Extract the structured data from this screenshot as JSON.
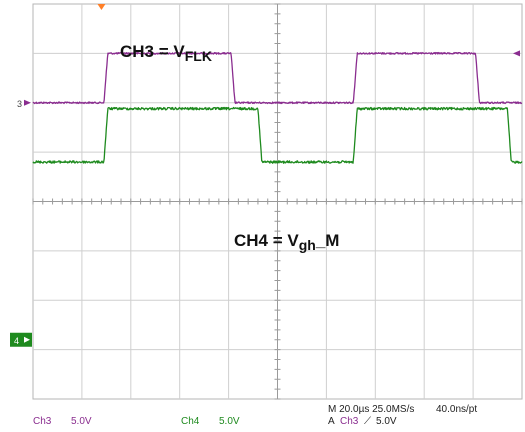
{
  "chart_data": {
    "type": "line",
    "grid": true,
    "divisions": {
      "x": 10,
      "y": 8
    },
    "x": {
      "unit": "div",
      "range": [
        0,
        10
      ]
    },
    "y": {
      "unit": "div",
      "range": [
        0,
        8
      ]
    },
    "channels": [
      {
        "id": "CH3",
        "label_main": "CH3 = V",
        "label_sub": "FLK",
        "marker": "3",
        "color": "#8a2d8f",
        "scale_label": "Ch3",
        "scale_value": "5.0V",
        "low_div": 6.0,
        "high_div": 7.0,
        "transitions_div": [
          1.45,
          4.05,
          6.55,
          9.05
        ]
      },
      {
        "id": "CH4",
        "label_main": "CH4 = V",
        "label_sub": "gh",
        "label_suffix": "_M",
        "marker": "4",
        "color": "#1e8a1e",
        "scale_label": "Ch4",
        "scale_value": "5.0V",
        "low_div": 4.8,
        "high_div": 5.88,
        "transitions_div": [
          1.45,
          4.6,
          6.55,
          9.7
        ]
      }
    ],
    "trigger_marker_color": "#ff7f27"
  },
  "footer": {
    "ch3_label": "Ch3",
    "ch3_value": "5.0V",
    "ch4_label": "Ch4",
    "ch4_value": "5.0V",
    "timebase": "M 20.0µs 25.0MS/s",
    "resolution": "40.0ns/pt",
    "trigger_prefix": "A",
    "trigger_channel": "Ch3",
    "trigger_symbol": "⟋",
    "trigger_level": "5.0V"
  }
}
